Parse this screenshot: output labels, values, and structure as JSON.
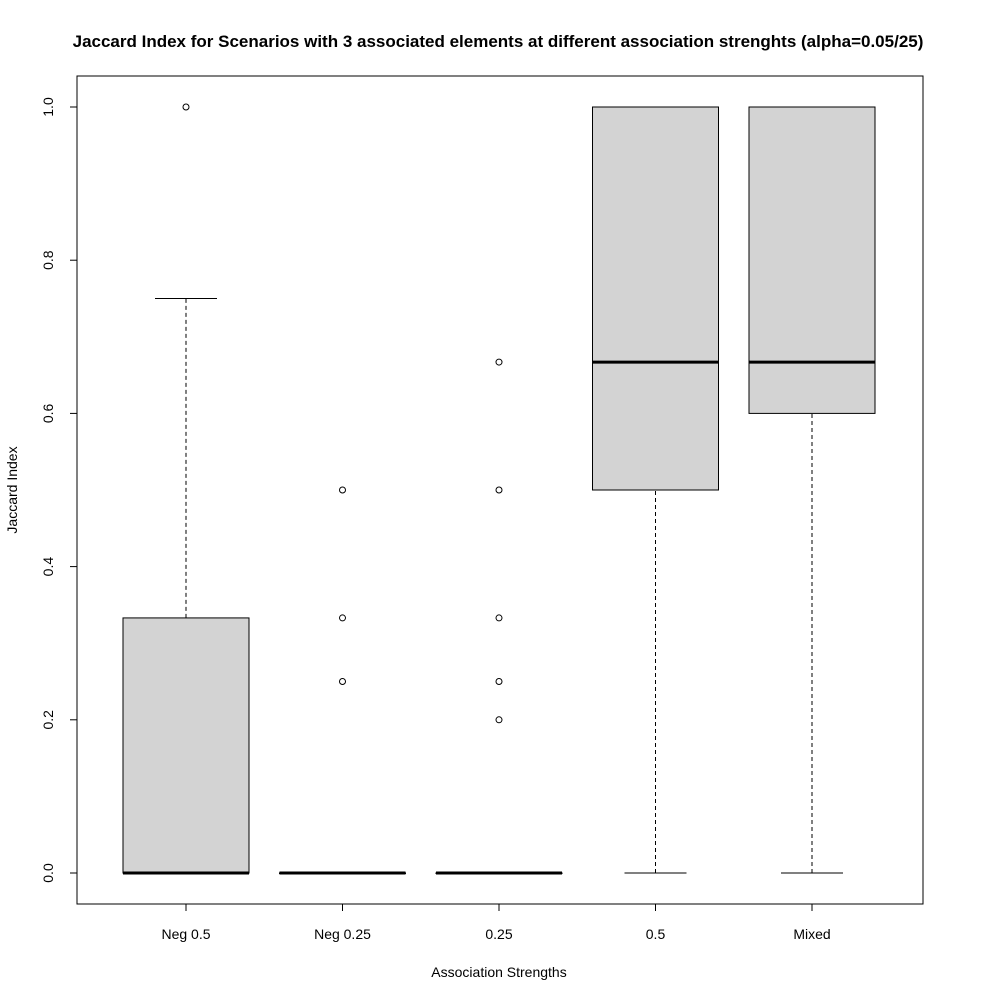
{
  "chart_data": {
    "type": "boxplot",
    "title": "Jaccard Index for Scenarios with 3 associated elements at different association strenghts (alpha=0.05/25)",
    "xlabel": "Association Strengths",
    "ylabel": "Jaccard Index",
    "ylim": [
      -0.04,
      1.04
    ],
    "yticks": [
      0.0,
      0.2,
      0.4,
      0.6,
      0.8,
      1.0
    ],
    "ytick_labels": [
      "0.0",
      "0.2",
      "0.4",
      "0.6",
      "0.8",
      "1.0"
    ],
    "grid": false,
    "box_fill": "#d3d3d3",
    "line_color": "#000000",
    "categories": [
      "Neg 0.5",
      "Neg 0.25",
      "0.25",
      "0.5",
      "Mixed"
    ],
    "boxes": [
      {
        "whisker_low": 0.0,
        "q1": 0.0,
        "median": 0.0,
        "q3": 0.333,
        "whisker_high": 0.75,
        "outliers": [
          1.0
        ]
      },
      {
        "whisker_low": 0.0,
        "q1": 0.0,
        "median": 0.0,
        "q3": 0.0,
        "whisker_high": 0.0,
        "outliers": [
          0.5,
          0.333,
          0.25
        ]
      },
      {
        "whisker_low": 0.0,
        "q1": 0.0,
        "median": 0.0,
        "q3": 0.0,
        "whisker_high": 0.0,
        "outliers": [
          0.667,
          0.5,
          0.333,
          0.25,
          0.2
        ]
      },
      {
        "whisker_low": 0.0,
        "q1": 0.5,
        "median": 0.667,
        "q3": 1.0,
        "whisker_high": 1.0,
        "outliers": []
      },
      {
        "whisker_low": 0.0,
        "q1": 0.6,
        "median": 0.667,
        "q3": 1.0,
        "whisker_high": 1.0,
        "outliers": []
      }
    ]
  }
}
